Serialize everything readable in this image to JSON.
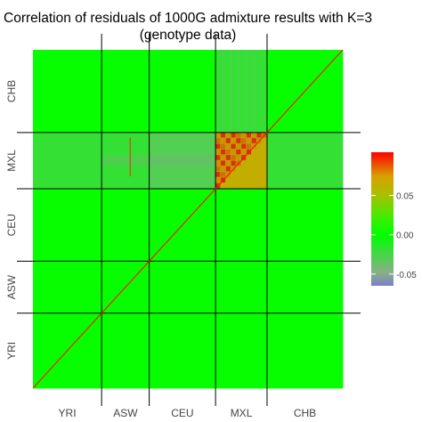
{
  "chart_data": {
    "type": "heatmap",
    "title": "Correlation of residuals of 1000G admixture results with K=3",
    "subtitle": "(genotype data)",
    "populations": [
      "YRI",
      "ASW",
      "CEU",
      "MXL",
      "CHB"
    ],
    "population_sizes": [
      88,
      61,
      85,
      66,
      97
    ],
    "x_tick_labels": [
      "YRI",
      "ASW",
      "CEU",
      "MXL",
      "CHB"
    ],
    "y_tick_labels": [
      "YRI",
      "ASW",
      "CEU",
      "MXL",
      "CHB"
    ],
    "block_values": [
      [
        0.0,
        0.0,
        0.0,
        0.0,
        0.0
      ],
      [
        0.0,
        0.0,
        0.0,
        0.0,
        0.0
      ],
      [
        0.0,
        0.0,
        0.0,
        0.0,
        0.0
      ],
      [
        -0.02,
        -0.02,
        -0.03,
        0.07,
        -0.02
      ],
      [
        0.0,
        0.0,
        0.0,
        -0.02,
        0.0
      ]
    ],
    "diagonal_value": 0.1,
    "colorbar": {
      "ticks": [
        -0.05,
        0,
        0.05
      ],
      "tick_labels": [
        "-0.05",
        "0.00",
        "0.05"
      ],
      "range": [
        -0.065,
        0.105
      ],
      "colors": {
        "min": "#7b7fc8",
        "low": "#88b088",
        "zero": "#00ff00",
        "mid_high": "#c8a800",
        "high": "#ff0000"
      }
    },
    "grid": false,
    "legend_position": "right"
  }
}
